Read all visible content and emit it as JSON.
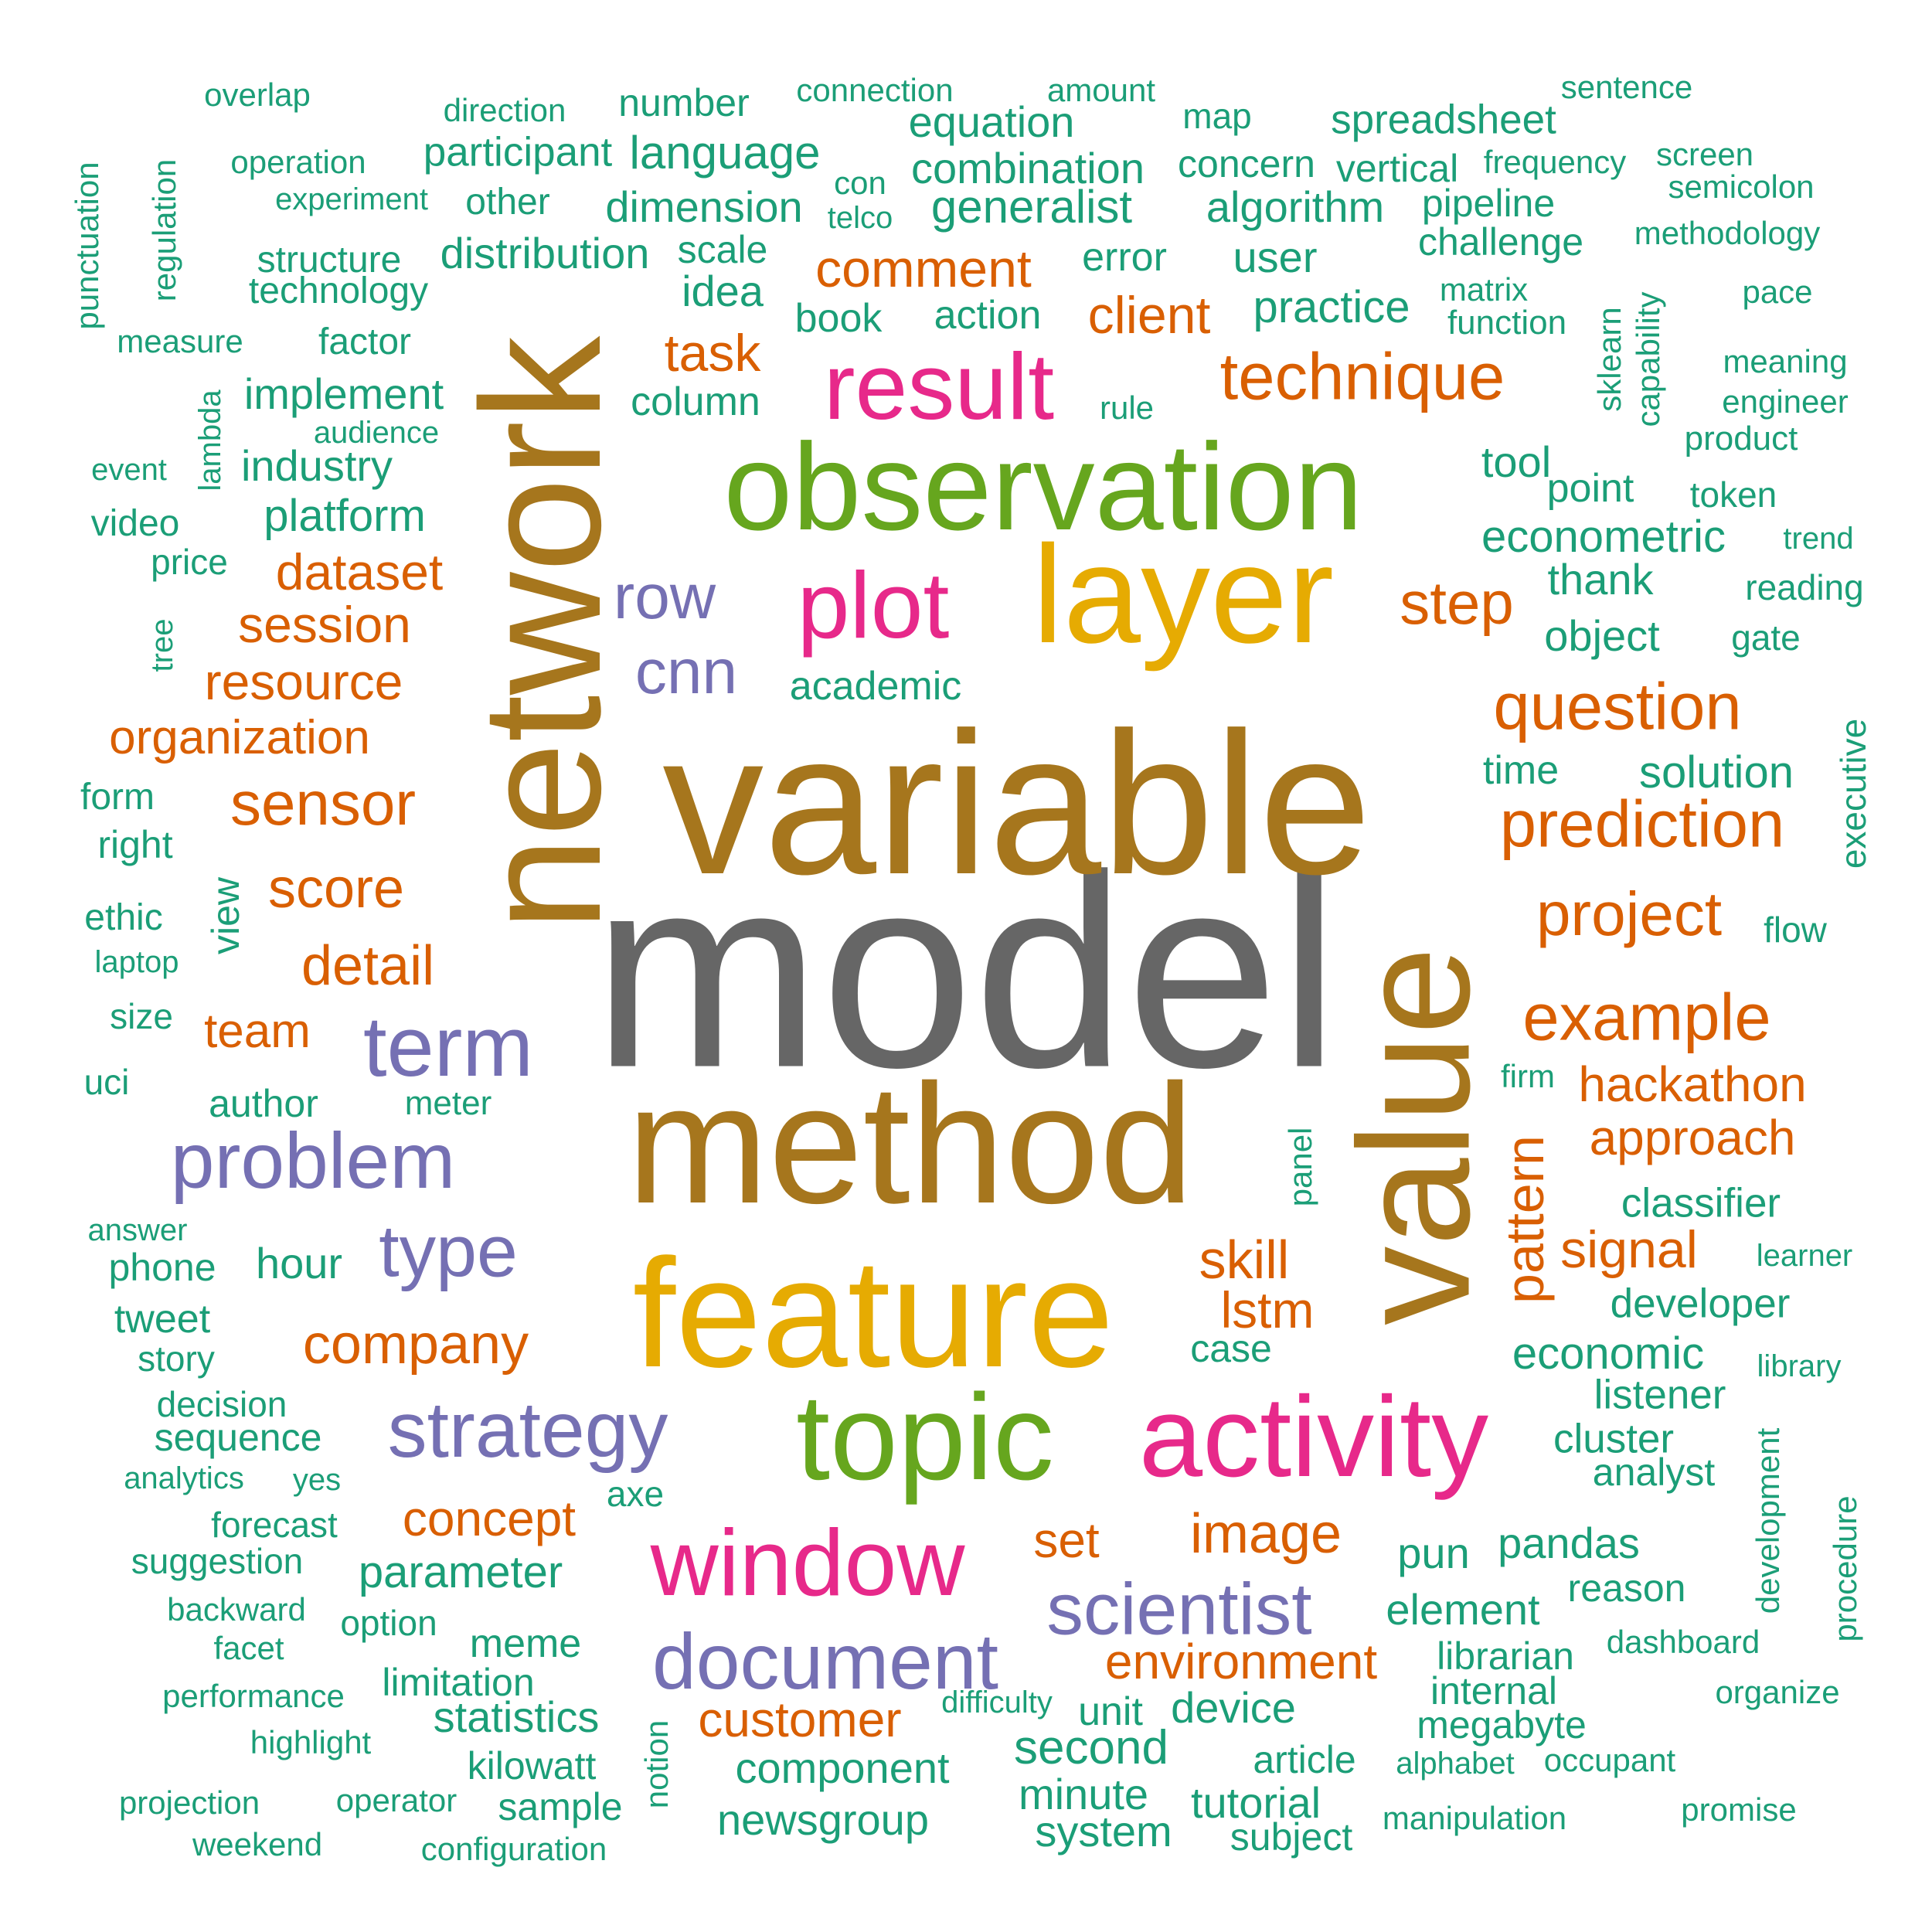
{
  "colors": {
    "gray": "#666666",
    "brown": "#A6761D",
    "gold": "#E6AB02",
    "green": "#66A61E",
    "pink": "#E7298A",
    "purple": "#7570B3",
    "orange": "#D95F02",
    "teal": "#1B9E77"
  },
  "words": [
    {
      "text": "model",
      "color": "gray",
      "weight": 1.0
    },
    {
      "text": "variable",
      "color": "brown",
      "weight": 0.72
    },
    {
      "text": "network",
      "color": "brown",
      "weight": 0.62
    },
    {
      "text": "method",
      "color": "brown",
      "weight": 0.62
    },
    {
      "text": "value",
      "color": "brown",
      "weight": 0.58
    },
    {
      "text": "feature",
      "color": "gold",
      "weight": 0.56
    },
    {
      "text": "layer",
      "color": "gold",
      "weight": 0.5
    },
    {
      "text": "observation",
      "color": "green",
      "weight": 0.45
    },
    {
      "text": "topic",
      "color": "green",
      "weight": 0.44
    },
    {
      "text": "activity",
      "color": "pink",
      "weight": 0.41
    },
    {
      "text": "result",
      "color": "pink",
      "weight": 0.34
    },
    {
      "text": "plot",
      "color": "pink",
      "weight": 0.34
    },
    {
      "text": "window",
      "color": "pink",
      "weight": 0.34
    },
    {
      "text": "term",
      "color": "purple",
      "weight": 0.3
    },
    {
      "text": "problem",
      "color": "purple",
      "weight": 0.28
    },
    {
      "text": "strategy",
      "color": "purple",
      "weight": 0.28
    },
    {
      "text": "document",
      "color": "purple",
      "weight": 0.28
    },
    {
      "text": "scientist",
      "color": "purple",
      "weight": 0.26
    },
    {
      "text": "type",
      "color": "purple",
      "weight": 0.26
    },
    {
      "text": "row",
      "color": "purple",
      "weight": 0.22
    },
    {
      "text": "cnn",
      "color": "purple",
      "weight": 0.22
    },
    {
      "text": "technique",
      "color": "orange",
      "weight": 0.22
    },
    {
      "text": "question",
      "color": "orange",
      "weight": 0.22
    },
    {
      "text": "prediction",
      "color": "orange",
      "weight": 0.22
    },
    {
      "text": "example",
      "color": "orange",
      "weight": 0.22
    },
    {
      "text": "project",
      "color": "orange",
      "weight": 0.2
    },
    {
      "text": "sensor",
      "color": "orange",
      "weight": 0.2
    },
    {
      "text": "step",
      "color": "orange",
      "weight": 0.2
    },
    {
      "text": "pattern",
      "color": "orange",
      "weight": 0.18
    },
    {
      "text": "score",
      "color": "orange",
      "weight": 0.18
    },
    {
      "text": "company",
      "color": "orange",
      "weight": 0.18
    },
    {
      "text": "image",
      "color": "orange",
      "weight": 0.18
    },
    {
      "text": "environment",
      "color": "orange",
      "weight": 0.16
    },
    {
      "text": "customer",
      "color": "orange",
      "weight": 0.16
    },
    {
      "text": "skill",
      "color": "orange",
      "weight": 0.16
    },
    {
      "text": "detail",
      "color": "orange",
      "weight": 0.16
    },
    {
      "text": "signal",
      "color": "orange",
      "weight": 0.16
    },
    {
      "text": "comment",
      "color": "orange",
      "weight": 0.16
    },
    {
      "text": "client",
      "color": "orange",
      "weight": 0.16
    },
    {
      "text": "session",
      "color": "orange",
      "weight": 0.15
    },
    {
      "text": "dataset",
      "color": "orange",
      "weight": 0.15
    },
    {
      "text": "resource",
      "color": "orange",
      "weight": 0.15
    },
    {
      "text": "hackathon",
      "color": "orange",
      "weight": 0.15
    },
    {
      "text": "approach",
      "color": "orange",
      "weight": 0.15
    },
    {
      "text": "concept",
      "color": "orange",
      "weight": 0.15
    },
    {
      "text": "organization",
      "color": "orange",
      "weight": 0.14
    },
    {
      "text": "task",
      "color": "orange",
      "weight": 0.14
    },
    {
      "text": "lstm",
      "color": "orange",
      "weight": 0.14
    },
    {
      "text": "team",
      "color": "orange",
      "weight": 0.14
    },
    {
      "text": "set",
      "color": "orange",
      "weight": 0.14
    },
    {
      "text": "econometric",
      "color": "teal",
      "weight": 0.13
    },
    {
      "text": "economic",
      "color": "teal",
      "weight": 0.13
    },
    {
      "text": "practice",
      "color": "teal",
      "weight": 0.13
    },
    {
      "text": "solution",
      "color": "teal",
      "weight": 0.13
    },
    {
      "text": "second",
      "color": "teal",
      "weight": 0.13
    },
    {
      "text": "parameter",
      "color": "teal",
      "weight": 0.13
    },
    {
      "text": "platform",
      "color": "teal",
      "weight": 0.13
    },
    {
      "text": "generalist",
      "color": "teal",
      "weight": 0.13
    },
    {
      "text": "algorithm",
      "color": "teal",
      "weight": 0.13
    },
    {
      "text": "dimension",
      "color": "teal",
      "weight": 0.13
    },
    {
      "text": "combination",
      "color": "teal",
      "weight": 0.13
    },
    {
      "text": "language",
      "color": "teal",
      "weight": 0.13
    },
    {
      "text": "component",
      "color": "teal",
      "weight": 0.13
    },
    {
      "text": "newsgroup",
      "color": "teal",
      "weight": 0.12
    },
    {
      "text": "tutorial",
      "color": "teal",
      "weight": 0.12
    },
    {
      "text": "implement",
      "color": "teal",
      "weight": 0.12
    },
    {
      "text": "industry",
      "color": "teal",
      "weight": 0.12
    },
    {
      "text": "distribution",
      "color": "teal",
      "weight": 0.12
    },
    {
      "text": "participant",
      "color": "teal",
      "weight": 0.12
    },
    {
      "text": "equation",
      "color": "teal",
      "weight": 0.12
    },
    {
      "text": "spreadsheet",
      "color": "teal",
      "weight": 0.12
    },
    {
      "text": "device",
      "color": "teal",
      "weight": 0.12
    },
    {
      "text": "pun",
      "color": "teal",
      "weight": 0.12
    },
    {
      "text": "pandas",
      "color": "teal",
      "weight": 0.12
    },
    {
      "text": "element",
      "color": "teal",
      "weight": 0.12
    },
    {
      "text": "statistics",
      "color": "teal",
      "weight": 0.12
    },
    {
      "text": "developer",
      "color": "teal",
      "weight": 0.12
    },
    {
      "text": "classifier",
      "color": "teal",
      "weight": 0.12
    },
    {
      "text": "listener",
      "color": "teal",
      "weight": 0.12
    },
    {
      "text": "cluster",
      "color": "teal",
      "weight": 0.12
    },
    {
      "text": "object",
      "color": "teal",
      "weight": 0.12
    },
    {
      "text": "thank",
      "color": "teal",
      "weight": 0.12
    },
    {
      "text": "point",
      "color": "teal",
      "weight": 0.11
    },
    {
      "text": "tool",
      "color": "teal",
      "weight": 0.12
    },
    {
      "text": "idea",
      "color": "teal",
      "weight": 0.12
    },
    {
      "text": "hour",
      "color": "teal",
      "weight": 0.12
    },
    {
      "text": "user",
      "color": "teal",
      "weight": 0.12
    },
    {
      "text": "minute",
      "color": "teal",
      "weight": 0.12
    },
    {
      "text": "system",
      "color": "teal",
      "weight": 0.12
    },
    {
      "text": "academic",
      "color": "teal",
      "weight": 0.11
    },
    {
      "text": "column",
      "color": "teal",
      "weight": 0.11
    },
    {
      "text": "action",
      "color": "teal",
      "weight": 0.11
    },
    {
      "text": "book",
      "color": "teal",
      "weight": 0.11
    },
    {
      "text": "error",
      "color": "teal",
      "weight": 0.11
    },
    {
      "text": "concern",
      "color": "teal",
      "weight": 0.11
    },
    {
      "text": "vertical",
      "color": "teal",
      "weight": 0.11
    },
    {
      "text": "pipeline",
      "color": "teal",
      "weight": 0.11
    },
    {
      "text": "challenge",
      "color": "teal",
      "weight": 0.11
    },
    {
      "text": "number",
      "color": "teal",
      "weight": 0.11
    },
    {
      "text": "scale",
      "color": "teal",
      "weight": 0.11
    },
    {
      "text": "view",
      "color": "teal",
      "weight": 0.11
    },
    {
      "text": "time",
      "color": "teal",
      "weight": 0.11
    },
    {
      "text": "unit",
      "color": "teal",
      "weight": 0.11
    },
    {
      "text": "article",
      "color": "teal",
      "weight": 0.11
    },
    {
      "text": "meme",
      "color": "teal",
      "weight": 0.11
    },
    {
      "text": "sample",
      "color": "teal",
      "weight": 0.11
    },
    {
      "text": "kilowatt",
      "color": "teal",
      "weight": 0.11
    },
    {
      "text": "limitation",
      "color": "teal",
      "weight": 0.11
    },
    {
      "text": "megabyte",
      "color": "teal",
      "weight": 0.11
    },
    {
      "text": "librarian",
      "color": "teal",
      "weight": 0.11
    },
    {
      "text": "internal",
      "color": "teal",
      "weight": 0.11
    },
    {
      "text": "subject",
      "color": "teal",
      "weight": 0.11
    },
    {
      "text": "case",
      "color": "teal",
      "weight": 0.11
    },
    {
      "text": "analyst",
      "color": "teal",
      "weight": 0.11
    },
    {
      "text": "reason",
      "color": "teal",
      "weight": 0.11
    },
    {
      "text": "phone",
      "color": "teal",
      "weight": 0.11
    },
    {
      "text": "tweet",
      "color": "teal",
      "weight": 0.11
    },
    {
      "text": "author",
      "color": "teal",
      "weight": 0.11
    },
    {
      "text": "sequence",
      "color": "teal",
      "weight": 0.11
    },
    {
      "text": "forecast",
      "color": "teal",
      "weight": 0.1
    },
    {
      "text": "suggestion",
      "color": "teal",
      "weight": 0.1
    },
    {
      "text": "option",
      "color": "teal",
      "weight": 0.1
    },
    {
      "text": "technology",
      "color": "teal",
      "weight": 0.1
    },
    {
      "text": "structure",
      "color": "teal",
      "weight": 0.1
    },
    {
      "text": "factor",
      "color": "teal",
      "weight": 0.1
    },
    {
      "text": "other",
      "color": "teal",
      "weight": 0.1
    },
    {
      "text": "right",
      "color": "teal",
      "weight": 0.1
    },
    {
      "text": "form",
      "color": "teal",
      "weight": 0.1
    },
    {
      "text": "ethic",
      "color": "teal",
      "weight": 0.1
    },
    {
      "text": "video",
      "color": "teal",
      "weight": 0.1
    },
    {
      "text": "price",
      "color": "teal",
      "weight": 0.1
    },
    {
      "text": "story",
      "color": "teal",
      "weight": 0.1
    },
    {
      "text": "uci",
      "color": "teal",
      "weight": 0.1
    },
    {
      "text": "size",
      "color": "teal",
      "weight": 0.1
    },
    {
      "text": "decision",
      "color": "teal",
      "weight": 0.1
    },
    {
      "text": "axe",
      "color": "teal",
      "weight": 0.1
    },
    {
      "text": "meter",
      "color": "teal",
      "weight": 0.09
    },
    {
      "text": "token",
      "color": "teal",
      "weight": 0.1
    },
    {
      "text": "product",
      "color": "teal",
      "weight": 0.09
    },
    {
      "text": "function",
      "color": "teal",
      "weight": 0.09
    },
    {
      "text": "map",
      "color": "teal",
      "weight": 0.09
    },
    {
      "text": "direction",
      "color": "teal",
      "weight": 0.09
    },
    {
      "text": "connection",
      "color": "teal",
      "weight": 0.09
    },
    {
      "text": "amount",
      "color": "teal",
      "weight": 0.09
    },
    {
      "text": "sentence",
      "color": "teal",
      "weight": 0.09
    },
    {
      "text": "overlap",
      "color": "teal",
      "weight": 0.09
    },
    {
      "text": "operation",
      "color": "teal",
      "weight": 0.09
    },
    {
      "text": "experiment",
      "color": "teal",
      "weight": 0.09
    },
    {
      "text": "measure",
      "color": "teal",
      "weight": 0.09
    },
    {
      "text": "audience",
      "color": "teal",
      "weight": 0.09
    },
    {
      "text": "event",
      "color": "teal",
      "weight": 0.09
    },
    {
      "text": "laptop",
      "color": "teal",
      "weight": 0.09
    },
    {
      "text": "answer",
      "color": "teal",
      "weight": 0.09
    },
    {
      "text": "analytics",
      "color": "teal",
      "weight": 0.09
    },
    {
      "text": "yes",
      "color": "teal",
      "weight": 0.09
    },
    {
      "text": "backward",
      "color": "teal",
      "weight": 0.09
    },
    {
      "text": "facet",
      "color": "teal",
      "weight": 0.09
    },
    {
      "text": "performance",
      "color": "teal",
      "weight": 0.09
    },
    {
      "text": "highlight",
      "color": "teal",
      "weight": 0.09
    },
    {
      "text": "projection",
      "color": "teal",
      "weight": 0.09
    },
    {
      "text": "operator",
      "color": "teal",
      "weight": 0.09
    },
    {
      "text": "weekend",
      "color": "teal",
      "weight": 0.09
    },
    {
      "text": "configuration",
      "color": "teal",
      "weight": 0.09
    },
    {
      "text": "difficulty",
      "color": "teal",
      "weight": 0.09
    },
    {
      "text": "alphabet",
      "color": "teal",
      "weight": 0.09
    },
    {
      "text": "occupant",
      "color": "teal",
      "weight": 0.09
    },
    {
      "text": "manipulation",
      "color": "teal",
      "weight": 0.09
    },
    {
      "text": "promise",
      "color": "teal",
      "weight": 0.09
    },
    {
      "text": "dashboard",
      "color": "teal",
      "weight": 0.09
    },
    {
      "text": "organize",
      "color": "teal",
      "weight": 0.09
    },
    {
      "text": "library",
      "color": "teal",
      "weight": 0.09
    },
    {
      "text": "learner",
      "color": "teal",
      "weight": 0.09
    },
    {
      "text": "firm",
      "color": "teal",
      "weight": 0.09
    },
    {
      "text": "flow",
      "color": "teal",
      "weight": 0.09
    },
    {
      "text": "gate",
      "color": "teal",
      "weight": 0.09
    },
    {
      "text": "reading",
      "color": "teal",
      "weight": 0.09
    },
    {
      "text": "trend",
      "color": "teal",
      "weight": 0.08
    },
    {
      "text": "engineer",
      "color": "teal",
      "weight": 0.09
    },
    {
      "text": "meaning",
      "color": "teal",
      "weight": 0.09
    },
    {
      "text": "pace",
      "color": "teal",
      "weight": 0.09
    },
    {
      "text": "methodology",
      "color": "teal",
      "weight": 0.09
    },
    {
      "text": "semicolon",
      "color": "teal",
      "weight": 0.09
    },
    {
      "text": "screen",
      "color": "teal",
      "weight": 0.09
    },
    {
      "text": "frequency",
      "color": "teal",
      "weight": 0.09
    },
    {
      "text": "matrix",
      "color": "teal",
      "weight": 0.09
    },
    {
      "text": "rule",
      "color": "teal",
      "weight": 0.09
    },
    {
      "text": "con",
      "color": "teal",
      "weight": 0.09
    },
    {
      "text": "telco",
      "color": "teal",
      "weight": 0.09
    },
    {
      "text": "punctuation",
      "color": "teal",
      "weight": 0.09
    },
    {
      "text": "regulation",
      "color": "teal",
      "weight": 0.09
    },
    {
      "text": "lambda",
      "color": "teal",
      "weight": 0.09
    },
    {
      "text": "tree",
      "color": "teal",
      "weight": 0.09
    },
    {
      "text": "panel",
      "color": "teal",
      "weight": 0.09
    },
    {
      "text": "notion",
      "color": "teal",
      "weight": 0.09
    },
    {
      "text": "sklearn",
      "color": "teal",
      "weight": 0.09
    },
    {
      "text": "capability",
      "color": "teal",
      "weight": 0.09
    },
    {
      "text": "executive",
      "color": "teal",
      "weight": 0.1
    },
    {
      "text": "development",
      "color": "teal",
      "weight": 0.09
    },
    {
      "text": "procedure",
      "color": "teal",
      "weight": 0.09
    }
  ]
}
